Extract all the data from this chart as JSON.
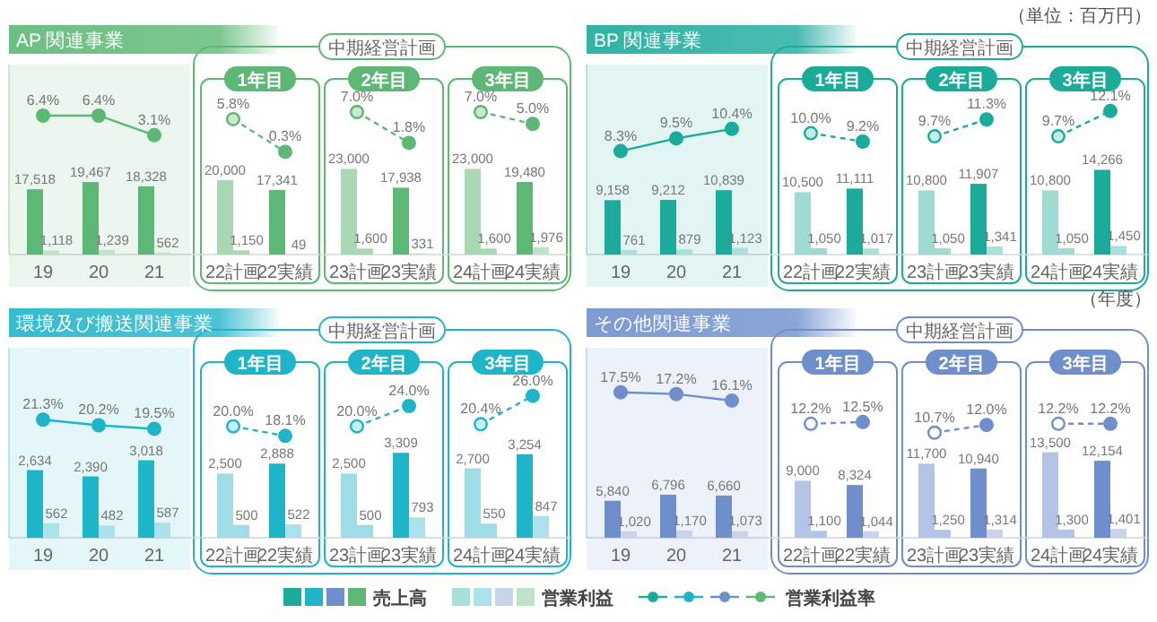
{
  "chart_data": [
    {
      "type": "bar",
      "title": "AP 関連事業",
      "categories": [
        "19",
        "20",
        "21",
        "22計画",
        "22実績",
        "23計画",
        "23実績",
        "24計画",
        "24実績"
      ],
      "ylim": [
        0,
        51000
      ],
      "y2lim": [
        -17,
        15
      ],
      "tick_labels": false,
      "legend": "bottom",
      "annotations": [
        "中期経営計画",
        "1年目",
        "2年目",
        "3年目"
      ],
      "series": [
        {
          "name": "売上高",
          "color": "#5cb874",
          "colors": [
            "#5cb874",
            "#5cb874",
            "#5cb874",
            "#a9d9b3",
            "#5cb874",
            "#a9d9b3",
            "#5cb874",
            "#a9d9b3",
            "#5cb874"
          ],
          "values": [
            17518,
            19467,
            18328,
            20000,
            17341,
            23000,
            17938,
            23000,
            19480
          ],
          "value_labels": [
            "17,518",
            "19,467",
            "18,328",
            "20,000",
            "17,341",
            "23,000",
            "17,938",
            "23,000",
            "19,480"
          ]
        },
        {
          "name": "営業利益",
          "color": "#bfe3c6",
          "colors": [
            "#bfe3c6",
            "#bfe3c6",
            "#bfe3c6",
            "#a9d9b3",
            "#bfe3c6",
            "#a9d9b3",
            "#bfe3c6",
            "#a9d9b3",
            "#bfe3c6"
          ],
          "values": [
            1118,
            1239,
            562,
            1150,
            49,
            1600,
            331,
            1600,
            1976
          ],
          "value_labels": [
            "1,118",
            "1,239",
            "562",
            "1,150",
            "49",
            "1,600",
            "331",
            "1,600",
            "1,976"
          ]
        },
        {
          "type": "line",
          "name": "営業利益率",
          "axis": "y2",
          "color": "#5cb874",
          "line_style": "solid",
          "marker": "circle",
          "values": [
            6.4,
            6.4,
            3.1,
            null,
            null,
            null,
            null,
            null,
            null
          ],
          "value_labels": [
            "6.4%",
            "6.4%",
            "3.1%",
            null,
            null,
            null,
            null,
            null,
            null
          ]
        },
        {
          "type": "line",
          "axis": "y2",
          "color": "#5cb874",
          "line_style": "dashed",
          "marker": "circle",
          "colors": [
            null,
            null,
            null,
            "#c9e8cf",
            "#5cb874",
            null,
            null,
            null,
            null
          ],
          "values": [
            null,
            null,
            null,
            5.8,
            0.3,
            null,
            null,
            null,
            null
          ],
          "value_labels": [
            null,
            null,
            null,
            "5.8%",
            "0.3%",
            null,
            null,
            null,
            null
          ]
        },
        {
          "type": "line",
          "axis": "y2",
          "color": "#5cb874",
          "line_style": "dashed",
          "marker": "circle",
          "colors": [
            null,
            null,
            null,
            null,
            null,
            "#c9e8cf",
            "#5cb874",
            null,
            null
          ],
          "values": [
            null,
            null,
            null,
            null,
            null,
            7.0,
            1.8,
            null,
            null
          ],
          "value_labels": [
            null,
            null,
            null,
            null,
            null,
            "7.0%",
            "1.8%",
            null,
            null
          ]
        },
        {
          "type": "line",
          "axis": "y2",
          "color": "#5cb874",
          "line_style": "dashed",
          "marker": "circle",
          "colors": [
            null,
            null,
            null,
            null,
            null,
            null,
            null,
            "#c9e8cf",
            "#5cb874"
          ],
          "values": [
            null,
            null,
            null,
            null,
            null,
            null,
            null,
            7.0,
            5.0
          ],
          "value_labels": [
            null,
            null,
            null,
            null,
            null,
            null,
            null,
            "7.0%",
            "5.0%"
          ]
        }
      ]
    },
    {
      "type": "bar",
      "title": "BP 関連事業",
      "categories": [
        "19",
        "20",
        "21",
        "22計画",
        "22実績",
        "23計画",
        "23実績",
        "24計画",
        "24実績"
      ],
      "ylim": [
        0,
        32000
      ],
      "y2lim": [
        -1.5,
        16.5
      ],
      "tick_labels": false,
      "annotations": [
        "中期経営計画",
        "1年目",
        "2年目",
        "3年目",
        "（単位：百万円）"
      ],
      "series": [
        {
          "color": "#1aab9b",
          "colors": [
            "#1aab9b",
            "#1aab9b",
            "#1aab9b",
            "#9ddbd3",
            "#1aab9b",
            "#9ddbd3",
            "#1aab9b",
            "#9ddbd3",
            "#1aab9b"
          ],
          "values": [
            9158,
            9212,
            10839,
            10500,
            11111,
            10800,
            11907,
            10800,
            14266
          ],
          "value_labels": [
            "9,158",
            "9,212",
            "10,839",
            "10,500",
            "11,111",
            "10,800",
            "11,907",
            "10,800",
            "14,266"
          ]
        },
        {
          "color": "#a8e0da",
          "colors": [
            "#a8e0da",
            "#a8e0da",
            "#a8e0da",
            "#9ddbd3",
            "#a8e0da",
            "#9ddbd3",
            "#a8e0da",
            "#9ddbd3",
            "#a8e0da"
          ],
          "values": [
            761,
            879,
            1123,
            1050,
            1017,
            1050,
            1341,
            1050,
            1450
          ],
          "value_labels": [
            "761",
            "879",
            "1,123",
            "1,050",
            "1,017",
            "1,050",
            "1,341",
            "1,050",
            "1,450"
          ]
        },
        {
          "type": "line",
          "axis": "y2",
          "color": "#1aab9b",
          "line_style": "solid",
          "marker": "circle",
          "values": [
            8.3,
            9.5,
            10.4,
            null,
            null,
            null,
            null,
            null,
            null
          ],
          "value_labels": [
            "8.3%",
            "9.5%",
            "10.4%",
            null,
            null,
            null,
            null,
            null,
            null
          ]
        },
        {
          "type": "line",
          "axis": "y2",
          "color": "#1aab9b",
          "line_style": "dashed",
          "marker": "circle",
          "colors": [
            null,
            null,
            null,
            "#c4ece7",
            "#1aab9b",
            null,
            null,
            null,
            null
          ],
          "values": [
            null,
            null,
            null,
            10.0,
            9.2,
            null,
            null,
            null,
            null
          ],
          "value_labels": [
            null,
            null,
            null,
            "10.0%",
            "9.2%",
            null,
            null,
            null,
            null
          ]
        },
        {
          "type": "line",
          "axis": "y2",
          "color": "#1aab9b",
          "line_style": "dashed",
          "marker": "circle",
          "colors": [
            null,
            null,
            null,
            null,
            null,
            "#c4ece7",
            "#1aab9b",
            null,
            null
          ],
          "values": [
            null,
            null,
            null,
            null,
            null,
            9.7,
            11.3,
            null,
            null
          ],
          "value_labels": [
            null,
            null,
            null,
            null,
            null,
            "9.7%",
            "11.3%",
            null,
            null
          ]
        },
        {
          "type": "line",
          "axis": "y2",
          "color": "#1aab9b",
          "line_style": "dashed",
          "marker": "circle",
          "colors": [
            null,
            null,
            null,
            null,
            null,
            null,
            null,
            "#c4ece7",
            "#1aab9b"
          ],
          "values": [
            null,
            null,
            null,
            null,
            null,
            null,
            null,
            9.7,
            12.1
          ],
          "value_labels": [
            null,
            null,
            null,
            null,
            null,
            null,
            null,
            "9.7%",
            "12.1%"
          ]
        }
      ]
    },
    {
      "type": "bar",
      "title": "環境及び搬送関連事業",
      "categories": [
        "19",
        "20",
        "21",
        "22計画",
        "22実績",
        "23計画",
        "23実績",
        "24計画",
        "24実績"
      ],
      "ylim": [
        0,
        7400
      ],
      "y2lim": [
        -2,
        35.5
      ],
      "tick_labels": false,
      "annotations": [
        "中期経営計画",
        "1年目",
        "2年目",
        "3年目"
      ],
      "series": [
        {
          "color": "#1fb5c9",
          "colors": [
            "#1fb5c9",
            "#1fb5c9",
            "#1fb5c9",
            "#9fdde6",
            "#1fb5c9",
            "#9fdde6",
            "#1fb5c9",
            "#9fdde6",
            "#1fb5c9"
          ],
          "values": [
            2634,
            2390,
            3018,
            2500,
            2888,
            2500,
            3309,
            2700,
            3254
          ],
          "value_labels": [
            "2,634",
            "2,390",
            "3,018",
            "2,500",
            "2,888",
            "2,500",
            "3,309",
            "2,700",
            "3,254"
          ]
        },
        {
          "color": "#a9e2ea",
          "colors": [
            "#a9e2ea",
            "#a9e2ea",
            "#a9e2ea",
            "#9fdde6",
            "#a9e2ea",
            "#9fdde6",
            "#a9e2ea",
            "#9fdde6",
            "#a9e2ea"
          ],
          "values": [
            562,
            482,
            587,
            500,
            522,
            500,
            793,
            550,
            847
          ],
          "value_labels": [
            "562",
            "482",
            "587",
            "500",
            "522",
            "500",
            "793",
            "550",
            "847"
          ]
        },
        {
          "type": "line",
          "axis": "y2",
          "color": "#1fb5c9",
          "line_style": "solid",
          "marker": "circle",
          "values": [
            21.3,
            20.2,
            19.5,
            null,
            null,
            null,
            null,
            null,
            null
          ],
          "value_labels": [
            "21.3%",
            "20.2%",
            "19.5%",
            null,
            null,
            null,
            null,
            null,
            null
          ]
        },
        {
          "type": "line",
          "axis": "y2",
          "color": "#1fb5c9",
          "line_style": "dashed",
          "marker": "circle",
          "colors": [
            null,
            null,
            null,
            "#c6eef3",
            "#1fb5c9",
            null,
            null,
            null,
            null
          ],
          "values": [
            null,
            null,
            null,
            20.0,
            18.1,
            null,
            null,
            null,
            null
          ],
          "value_labels": [
            null,
            null,
            null,
            "20.0%",
            "18.1%",
            null,
            null,
            null,
            null
          ]
        },
        {
          "type": "line",
          "axis": "y2",
          "color": "#1fb5c9",
          "line_style": "dashed",
          "marker": "circle",
          "colors": [
            null,
            null,
            null,
            null,
            null,
            "#c6eef3",
            "#1fb5c9",
            null,
            null
          ],
          "values": [
            null,
            null,
            null,
            null,
            null,
            20.0,
            24.0,
            null,
            null
          ],
          "value_labels": [
            null,
            null,
            null,
            null,
            null,
            "20.0%",
            "24.0%",
            null,
            null
          ]
        },
        {
          "type": "line",
          "axis": "y2",
          "color": "#1fb5c9",
          "line_style": "dashed",
          "marker": "circle",
          "colors": [
            null,
            null,
            null,
            null,
            null,
            null,
            null,
            "#c6eef3",
            "#1fb5c9"
          ],
          "values": [
            null,
            null,
            null,
            null,
            null,
            null,
            null,
            20.4,
            26.0
          ],
          "value_labels": [
            null,
            null,
            null,
            null,
            null,
            null,
            null,
            "20.4%",
            "26.0%"
          ]
        }
      ]
    },
    {
      "type": "bar",
      "title": "その他関連事業",
      "categories": [
        "19",
        "20",
        "21",
        "22計画",
        "22実績",
        "23計画",
        "23実績",
        "24計画",
        "24実績"
      ],
      "ylim": [
        0,
        30000
      ],
      "y2lim": [
        -7,
        25
      ],
      "tick_labels": false,
      "annotations": [
        "中期経営計画",
        "1年目",
        "2年目",
        "3年目",
        "（年度）"
      ],
      "series": [
        {
          "color": "#6f8fcc",
          "colors": [
            "#6f8fcc",
            "#6f8fcc",
            "#6f8fcc",
            "#b4c4e6",
            "#6f8fcc",
            "#b4c4e6",
            "#6f8fcc",
            "#b4c4e6",
            "#6f8fcc"
          ],
          "values": [
            5840,
            6796,
            6660,
            9000,
            8324,
            11700,
            10940,
            13500,
            12154
          ],
          "value_labels": [
            "5,840",
            "6,796",
            "6,660",
            "9,000",
            "8,324",
            "11,700",
            "10,940",
            "13,500",
            "12,154"
          ]
        },
        {
          "color": "#c9d4ec",
          "colors": [
            "#c9d4ec",
            "#c9d4ec",
            "#c9d4ec",
            "#b4c4e6",
            "#c9d4ec",
            "#b4c4e6",
            "#c9d4ec",
            "#b4c4e6",
            "#c9d4ec"
          ],
          "values": [
            1020,
            1170,
            1073,
            1100,
            1044,
            1250,
            1314,
            1300,
            1401
          ],
          "value_labels": [
            "1,020",
            "1,170",
            "1,073",
            "1,100",
            "1,044",
            "1,250",
            "1,314",
            "1,300",
            "1,401"
          ]
        },
        {
          "type": "line",
          "axis": "y2",
          "color": "#6f8fcc",
          "line_style": "solid",
          "marker": "circle",
          "values": [
            17.5,
            17.2,
            16.1,
            null,
            null,
            null,
            null,
            null,
            null
          ],
          "value_labels": [
            "17.5%",
            "17.2%",
            "16.1%",
            null,
            null,
            null,
            null,
            null,
            null
          ]
        },
        {
          "type": "line",
          "axis": "y2",
          "color": "#6f8fcc",
          "line_style": "dashed",
          "marker": "circle",
          "colors": [
            null,
            null,
            null,
            "#ffffff",
            "#6f8fcc",
            null,
            null,
            null,
            null
          ],
          "values": [
            null,
            null,
            null,
            12.2,
            12.5,
            null,
            null,
            null,
            null
          ],
          "value_labels": [
            null,
            null,
            null,
            "12.2%",
            "12.5%",
            null,
            null,
            null,
            null
          ]
        },
        {
          "type": "line",
          "axis": "y2",
          "color": "#6f8fcc",
          "line_style": "dashed",
          "marker": "circle",
          "colors": [
            null,
            null,
            null,
            null,
            null,
            "#ffffff",
            "#6f8fcc",
            null,
            null
          ],
          "values": [
            null,
            null,
            null,
            null,
            null,
            10.7,
            12.0,
            null,
            null
          ],
          "value_labels": [
            null,
            null,
            null,
            null,
            null,
            "10.7%",
            "12.0%",
            null,
            null
          ]
        },
        {
          "type": "line",
          "axis": "y2",
          "color": "#6f8fcc",
          "line_style": "dashed",
          "marker": "circle",
          "colors": [
            null,
            null,
            null,
            null,
            null,
            null,
            null,
            "#ffffff",
            "#6f8fcc"
          ],
          "values": [
            null,
            null,
            null,
            null,
            null,
            null,
            null,
            12.2,
            12.2
          ],
          "value_labels": [
            null,
            null,
            null,
            null,
            null,
            null,
            null,
            "12.2%",
            "12.2%"
          ]
        }
      ]
    }
  ]
}
